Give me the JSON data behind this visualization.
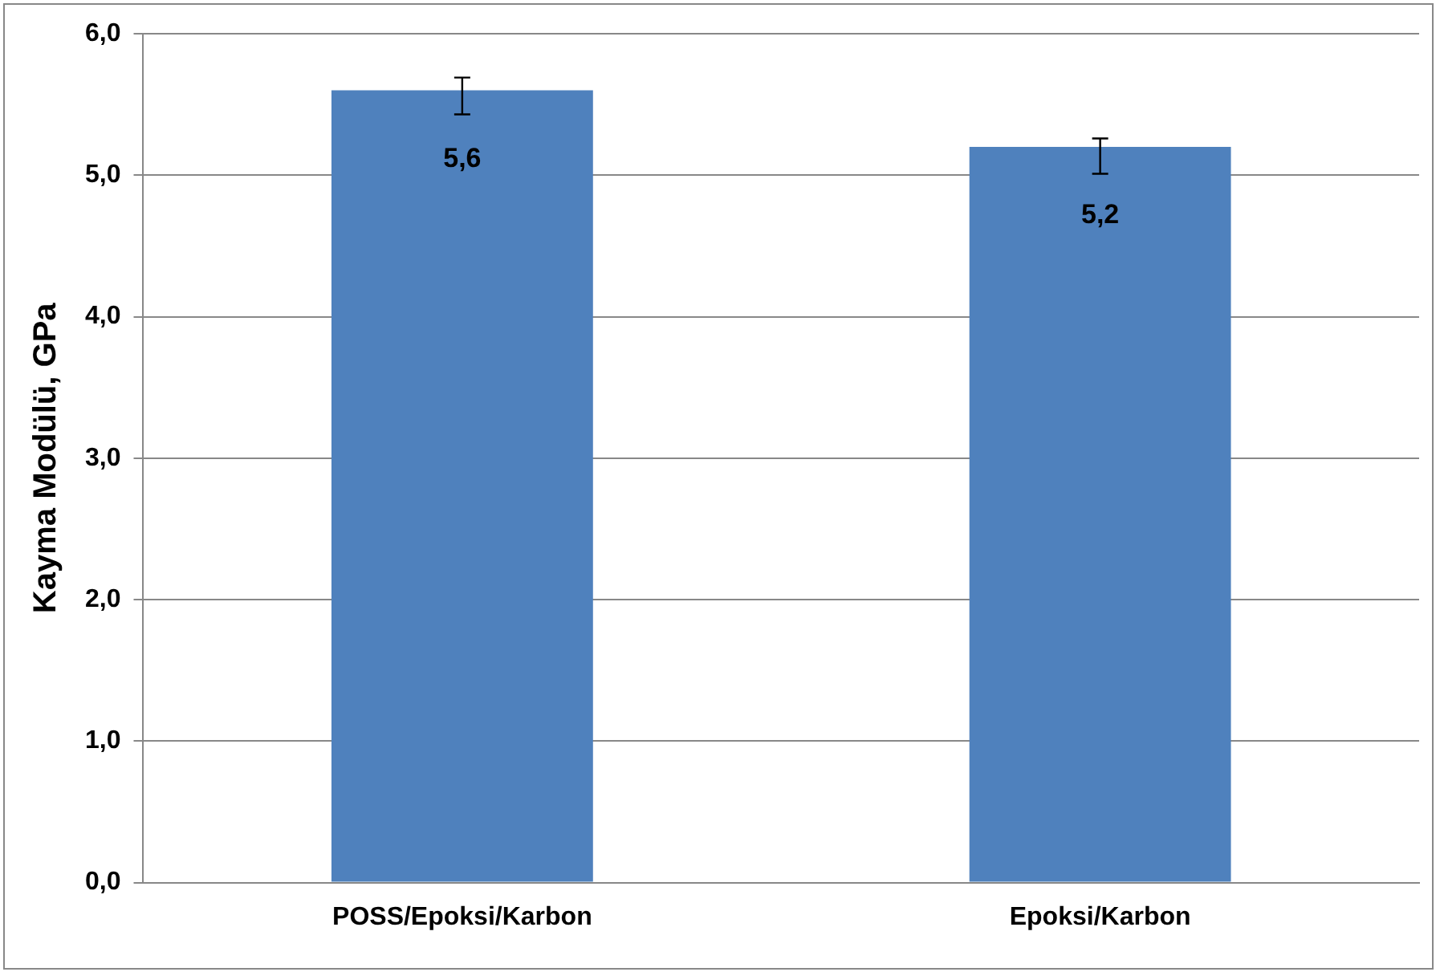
{
  "chart_data": {
    "type": "bar",
    "ylabel": "Kayma Modülü, GPa",
    "categories": [
      "POSS/Epoksi/Karbon",
      "Epoksi/Karbon"
    ],
    "values": [
      5.6,
      5.2
    ],
    "value_labels": [
      "5,6",
      "5,2"
    ],
    "errors": [
      [
        5.43,
        5.69
      ],
      [
        5.01,
        5.26
      ]
    ],
    "color": "#4f81bd",
    "ylim": [
      0,
      6
    ],
    "yticks": [
      {
        "value": 0,
        "label": "0,0"
      },
      {
        "value": 1,
        "label": "1,0"
      },
      {
        "value": 2,
        "label": "2,0"
      },
      {
        "value": 3,
        "label": "3,0"
      },
      {
        "value": 4,
        "label": "4,0"
      },
      {
        "value": 5,
        "label": "5,0"
      },
      {
        "value": 6,
        "label": "6,0"
      }
    ],
    "grid": "y",
    "legend": false
  }
}
